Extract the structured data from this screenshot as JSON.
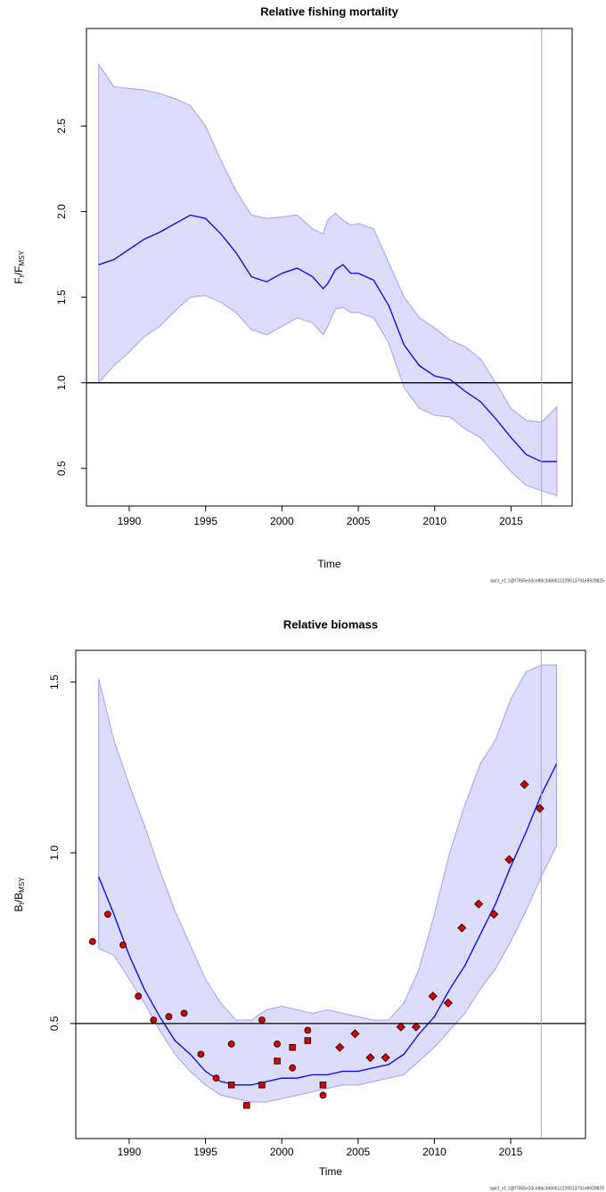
{
  "chart_data": [
    {
      "type": "line",
      "title": "Relative fishing mortality",
      "xlabel": "Time",
      "ylabel": [
        {
          "text": "F"
        },
        {
          "text": "t",
          "sub": true
        },
        {
          "text": "/F"
        },
        {
          "text": "MSY",
          "sub": true
        }
      ],
      "footer": "spict_v1.1@f7655e33ce8dc3d66611229513791e8929825",
      "x": [
        1988,
        1989,
        1990,
        1991,
        1992,
        1993,
        1994,
        1995,
        1996,
        1997,
        1998,
        1999,
        2000,
        2001,
        2002,
        2002.7,
        2003,
        2003.5,
        2004,
        2004.5,
        2005,
        2006,
        2007,
        2008,
        2009,
        2010,
        2011,
        2012,
        2013,
        2014,
        2015,
        2016,
        2017,
        2018
      ],
      "values": [
        1.69,
        1.72,
        1.78,
        1.84,
        1.88,
        1.93,
        1.98,
        1.96,
        1.87,
        1.76,
        1.62,
        1.59,
        1.64,
        1.67,
        1.62,
        1.55,
        1.58,
        1.66,
        1.69,
        1.64,
        1.64,
        1.6,
        1.45,
        1.22,
        1.1,
        1.04,
        1.02,
        0.95,
        0.89,
        0.79,
        0.68,
        0.58,
        0.54,
        0.54
      ],
      "upper": [
        2.86,
        2.73,
        2.72,
        2.71,
        2.69,
        2.66,
        2.62,
        2.5,
        2.3,
        2.12,
        1.98,
        1.96,
        1.97,
        1.98,
        1.9,
        1.87,
        1.95,
        1.99,
        1.95,
        1.92,
        1.93,
        1.9,
        1.7,
        1.5,
        1.38,
        1.32,
        1.25,
        1.21,
        1.14,
        1.0,
        0.85,
        0.78,
        0.77,
        0.86
      ],
      "lower": [
        1.0,
        1.1,
        1.18,
        1.27,
        1.33,
        1.42,
        1.5,
        1.51,
        1.47,
        1.41,
        1.31,
        1.28,
        1.33,
        1.38,
        1.35,
        1.28,
        1.33,
        1.43,
        1.44,
        1.41,
        1.41,
        1.38,
        1.23,
        0.97,
        0.85,
        0.81,
        0.8,
        0.73,
        0.68,
        0.58,
        0.48,
        0.4,
        0.37,
        0.34
      ],
      "color": "#0000ff",
      "band_color": "#dcdcfb",
      "band_edge": "#a0a0f5",
      "xlim": [
        1987.2,
        2019.0
      ],
      "ylim": [
        0.28,
        3.07
      ],
      "xticks": [
        1990,
        1995,
        2000,
        2005,
        2010,
        2015
      ],
      "yticks": [
        0.5,
        {
          "value": 1,
          "label": "1.0"
        },
        1.5,
        {
          "value": 2,
          "label": "2.0"
        },
        2.5
      ],
      "hline": 1,
      "vline": 2017,
      "points": []
    },
    {
      "type": "line",
      "title": "Relative biomass",
      "xlabel": "Time",
      "ylabel": [
        {
          "text": "B"
        },
        {
          "text": "t",
          "sub": true
        },
        {
          "text": "/B"
        },
        {
          "text": "MSY",
          "sub": true
        }
      ],
      "footer": "spict_v1.1@f7655e33ce8dc3d66611229513791e8929825",
      "x": [
        1988,
        1989,
        1990,
        1991,
        1992,
        1993,
        1994,
        1995,
        1996,
        1997,
        1998,
        1999,
        2000,
        2001,
        2002,
        2003,
        2004,
        2005,
        2006,
        2007,
        2008,
        2009,
        2010,
        2011,
        2012,
        2013,
        2014,
        2015,
        2016,
        2017,
        2018
      ],
      "values": [
        0.93,
        0.82,
        0.7,
        0.6,
        0.52,
        0.45,
        0.41,
        0.36,
        0.33,
        0.32,
        0.32,
        0.33,
        0.34,
        0.34,
        0.35,
        0.35,
        0.36,
        0.36,
        0.37,
        0.38,
        0.41,
        0.47,
        0.52,
        0.6,
        0.67,
        0.76,
        0.85,
        0.96,
        1.06,
        1.17,
        1.26
      ],
      "upper": [
        1.51,
        1.33,
        1.2,
        1.08,
        0.95,
        0.83,
        0.73,
        0.63,
        0.56,
        0.51,
        0.51,
        0.54,
        0.55,
        0.54,
        0.53,
        0.54,
        0.53,
        0.52,
        0.51,
        0.51,
        0.56,
        0.66,
        0.82,
        1.0,
        1.14,
        1.26,
        1.33,
        1.45,
        1.53,
        1.55,
        1.55
      ],
      "lower": [
        0.72,
        0.7,
        0.63,
        0.56,
        0.48,
        0.41,
        0.36,
        0.32,
        0.29,
        0.28,
        0.27,
        0.27,
        0.28,
        0.29,
        0.3,
        0.31,
        0.32,
        0.32,
        0.33,
        0.34,
        0.35,
        0.39,
        0.43,
        0.48,
        0.53,
        0.6,
        0.66,
        0.74,
        0.83,
        0.93,
        1.02
      ],
      "color": "#0000ff",
      "band_color": "#dcdcfb",
      "band_edge": "#a0a0f5",
      "xlim": [
        1986.5,
        2019.9
      ],
      "ylim": [
        0.163,
        1.593
      ],
      "xticks": [
        1990,
        1995,
        2000,
        2005,
        2010,
        2015
      ],
      "yticks": [
        0.5,
        {
          "value": 1,
          "label": "1.0"
        },
        1.5
      ],
      "hline": 0.5,
      "vline": 2017,
      "points": [
        {
          "shape": "circle",
          "color": "#dd0000",
          "x": [
            1987.6,
            1988.6,
            1989.6,
            1990.6,
            1991.6,
            1992.6,
            1993.6,
            1994.7,
            1995.7,
            1996.7,
            1998.7,
            1999.7,
            2000.7,
            2001.7,
            2002.7
          ],
          "values": [
            0.74,
            0.82,
            0.73,
            0.58,
            0.51,
            0.52,
            0.53,
            0.41,
            0.34,
            0.44,
            0.51,
            0.44,
            0.37,
            0.48,
            0.29
          ]
        },
        {
          "shape": "square",
          "color": "#dd0000",
          "x": [
            1996.7,
            1997.7,
            1998.7,
            1999.7,
            2000.7,
            2001.7,
            2002.7
          ],
          "values": [
            0.32,
            0.26,
            0.32,
            0.39,
            0.43,
            0.45,
            0.32
          ]
        },
        {
          "shape": "diamond",
          "color": "#dd0000",
          "x": [
            2003.8,
            2004.8,
            2005.8,
            2006.8,
            2007.8,
            2008.8,
            2009.9,
            2010.9,
            2011.8,
            2012.9,
            2013.9,
            2014.9,
            2015.9,
            2016.9
          ],
          "values": [
            0.43,
            0.47,
            0.4,
            0.4,
            0.49,
            0.49,
            0.58,
            0.56,
            0.78,
            0.85,
            0.82,
            0.98,
            1.2,
            1.13
          ]
        }
      ]
    }
  ]
}
